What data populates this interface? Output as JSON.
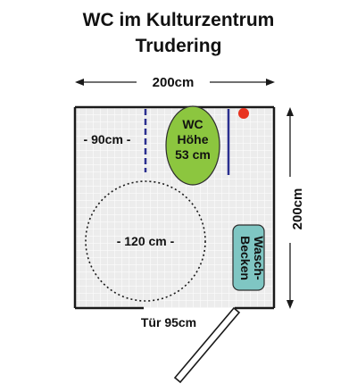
{
  "title": {
    "line1": "WC im Kulturzentrum",
    "line2": "Trudering"
  },
  "dimensions": {
    "width_label": "200cm",
    "depth_label": "200cm",
    "side_space_label": "- 90cm -",
    "turning_circle_label": "- 120 cm -",
    "door_label": "Tür 95cm"
  },
  "fixtures": {
    "wc": {
      "line1": "WC",
      "line2": "Höhe",
      "line3": "53 cm"
    },
    "basin": {
      "line1": "Wasch-",
      "line2": "Becken"
    }
  },
  "colors": {
    "floor_tile": "#ececec",
    "tile_grid": "#ffffff",
    "wall": "#1a1a1a",
    "wc_fill": "#8cc63f",
    "basin_fill": "#7fc6c3",
    "grab_bar": "#2a2f8f",
    "flush_button": "#e8321e"
  }
}
